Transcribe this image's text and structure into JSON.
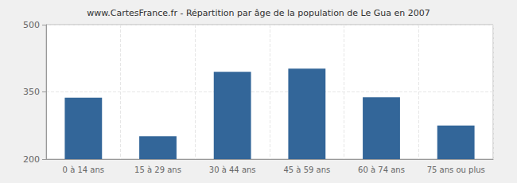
{
  "chart_data": {
    "type": "bar",
    "title": "www.CartesFrance.fr - Répartition par âge de la population de Le Gua en 2007",
    "categories": [
      "0 à 14 ans",
      "15 à 29 ans",
      "30 à 44 ans",
      "45 à 59 ans",
      "60 à 74 ans",
      "75 ans ou plus"
    ],
    "values": [
      337,
      251,
      395,
      402,
      338,
      275
    ],
    "color": "#336699",
    "ylim": [
      200,
      500
    ],
    "yticks": [
      200,
      350,
      500
    ],
    "grid": true
  }
}
